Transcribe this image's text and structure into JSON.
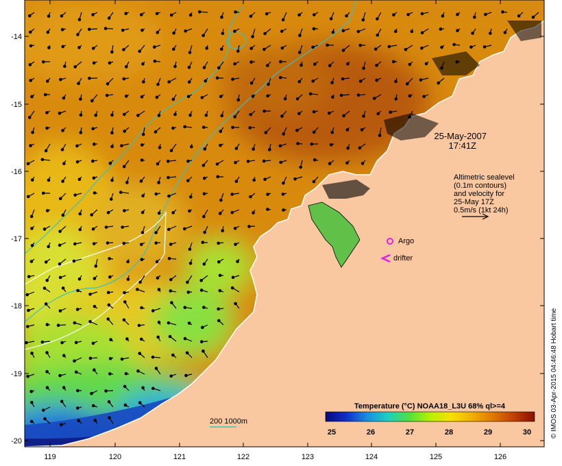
{
  "map": {
    "lon_ticks": [
      "119",
      "120",
      "121",
      "122",
      "123",
      "124",
      "125",
      "126"
    ],
    "lat_ticks": [
      "-14",
      "-15",
      "-16",
      "-17",
      "-18",
      "-19",
      "-20"
    ],
    "date_line1": "25-May-2007",
    "date_line2": "17:41Z",
    "velocity_legend": {
      "line1": "Altimetric sealevel",
      "line2": "(0.1m contours)",
      "line3": "and velocity for",
      "line4": "25-May 17Z",
      "line5": "0.5m/s (1kt 24h)"
    },
    "argo_label": "Argo",
    "drifter_label": "drifter",
    "depth_legend": "200 1000m",
    "colorbar": {
      "title": "Temperature (°C) NOAA18_L3U 68% ql>=4",
      "ticks": [
        "25",
        "26",
        "27",
        "28",
        "29",
        "30"
      ],
      "colors": [
        "#08087a",
        "#1030c8",
        "#1890e0",
        "#20d0c0",
        "#50e040",
        "#b8f000",
        "#f8e000",
        "#f0b000",
        "#e07800",
        "#c04000",
        "#8a1000"
      ]
    },
    "credit": "© IMOS 03-Apr-2015 04:46:48 Hobart time",
    "colors": {
      "land": "#fac8a0",
      "isobath": "#3ac0c0",
      "argo": "#e020e0",
      "drifter": "#e020e0"
    }
  }
}
